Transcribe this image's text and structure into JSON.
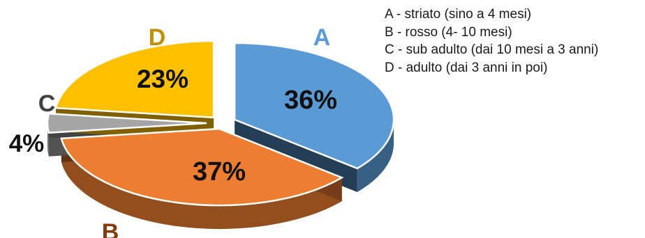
{
  "chart_data": {
    "type": "pie",
    "style": "3d-exploded",
    "categories": [
      "A",
      "B",
      "C",
      "D"
    ],
    "values": [
      36,
      37,
      4,
      23
    ],
    "data_labels": [
      "36%",
      "37%",
      "4%",
      "23%"
    ],
    "colors": [
      "#5b9bd5",
      "#ed7d31",
      "#a5a5a5",
      "#ffc000"
    ],
    "category_label_colors": [
      "#5b9bd5",
      "#843c0c",
      "#404040",
      "#bf9000"
    ],
    "legend_placement": "right",
    "legend": [
      "A - striato (sino a 4 mesi)",
      "B - rosso (4- 10 mesi)",
      "C - sub adulto (dai 10 mesi a 3 anni)",
      "D - adulto (dai 3 anni in poi)"
    ]
  }
}
